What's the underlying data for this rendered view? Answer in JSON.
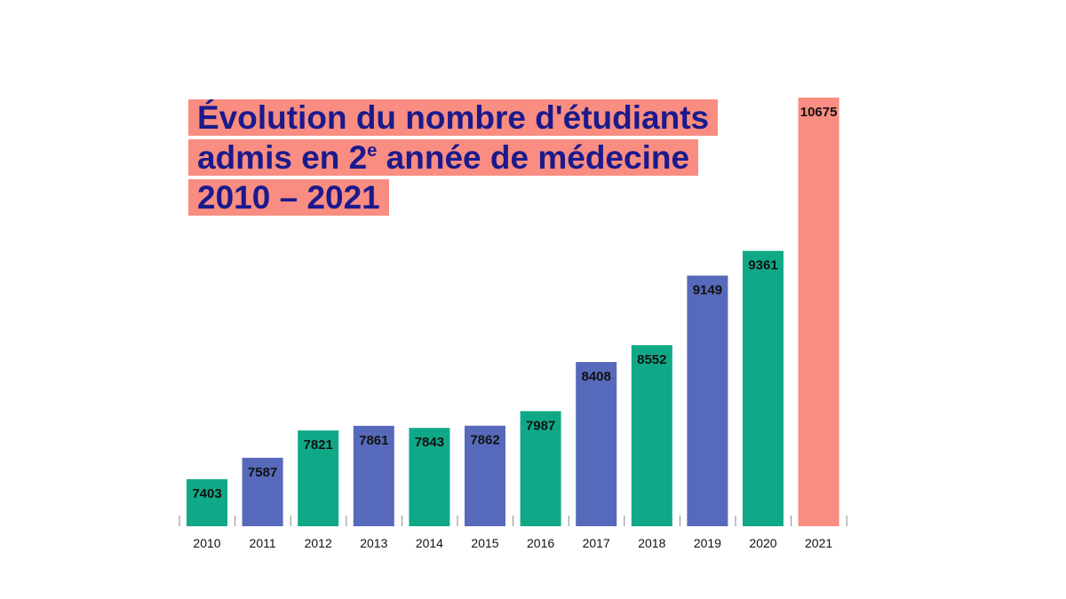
{
  "title": {
    "line1": "Évolution du nombre d'étudiants",
    "line2_before": "admis en 2",
    "line2_sup": "e",
    "line2_after": " année de médecine",
    "line3": "2010 – 2021"
  },
  "chart_data": {
    "type": "bar",
    "categories": [
      "2010",
      "2011",
      "2012",
      "2013",
      "2014",
      "2015",
      "2016",
      "2017",
      "2018",
      "2019",
      "2020",
      "2021"
    ],
    "values": [
      7403,
      7587,
      7821,
      7861,
      7843,
      7862,
      7987,
      8408,
      8552,
      9149,
      9361,
      10675
    ],
    "data_labels": [
      "7403",
      "7587",
      "7821",
      "7861",
      "7843",
      "7862",
      "7987",
      "8408",
      "8552",
      "9149",
      "9361",
      "10675"
    ],
    "bar_colors": [
      "#10a988",
      "#5769ba",
      "#10a988",
      "#5769ba",
      "#10a988",
      "#5769ba",
      "#10a988",
      "#5769ba",
      "#10a988",
      "#5769ba",
      "#10a988",
      "#f98d81"
    ],
    "ylim": [
      7000,
      10675
    ],
    "grid": false,
    "legend": "none"
  }
}
